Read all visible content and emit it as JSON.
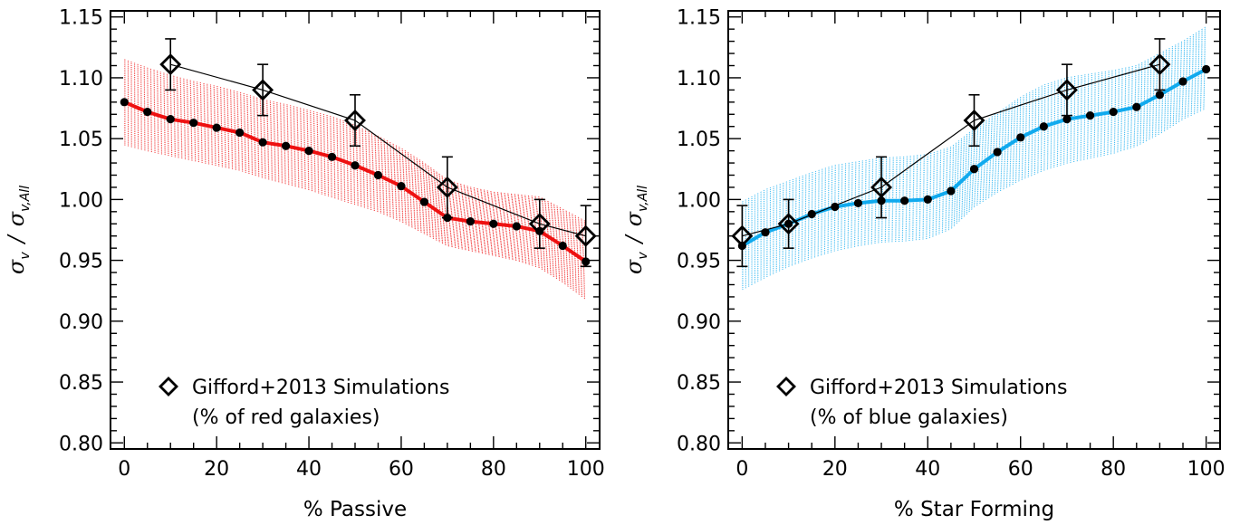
{
  "chart_data": [
    {
      "type": "line",
      "xlabel": "% Passive",
      "ylabel": {
        "symbol": "σ",
        "num_sub": "v",
        "sep": "/",
        "den_sub": "v,All"
      },
      "xlim": [
        -3,
        103
      ],
      "ylim": [
        0.795,
        1.155
      ],
      "xticks": [
        0,
        20,
        40,
        60,
        80,
        100
      ],
      "xtick_labels": [
        "0",
        "20",
        "40",
        "60",
        "80",
        "100"
      ],
      "yticks": [
        0.8,
        0.85,
        0.9,
        0.95,
        1.0,
        1.05,
        1.1,
        1.15
      ],
      "ytick_labels": [
        "0.80",
        "0.85",
        "0.90",
        "0.95",
        "1.00",
        "1.05",
        "1.10",
        "1.15"
      ],
      "grid": false,
      "series": [
        {
          "kind": "line-markers",
          "color": "#ee1111",
          "x": [
            0,
            5,
            10,
            15,
            20,
            25,
            30,
            35,
            40,
            45,
            50,
            55,
            60,
            65,
            70,
            75,
            80,
            85,
            90,
            95,
            100
          ],
          "y": [
            1.08,
            1.072,
            1.066,
            1.063,
            1.059,
            1.055,
            1.047,
            1.044,
            1.04,
            1.035,
            1.028,
            1.02,
            1.011,
            0.998,
            0.985,
            0.982,
            0.98,
            0.978,
            0.974,
            0.962,
            0.949
          ],
          "band_low": [
            1.045,
            1.04,
            1.036,
            1.032,
            1.028,
            1.024,
            1.018,
            1.013,
            1.008,
            1.002,
            0.996,
            0.99,
            0.982,
            0.972,
            0.962,
            0.958,
            0.954,
            0.95,
            0.944,
            0.932,
            0.918
          ],
          "band_high": [
            1.115,
            1.108,
            1.102,
            1.097,
            1.093,
            1.088,
            1.082,
            1.078,
            1.073,
            1.068,
            1.061,
            1.052,
            1.042,
            1.03,
            1.016,
            1.01,
            1.006,
            1.004,
            1.002,
            0.992,
            0.982
          ]
        },
        {
          "name": "Gifford+2013 Simulations",
          "kind": "diamond-errorbar",
          "color": "#000000",
          "x": [
            10,
            30,
            50,
            70,
            90,
            100
          ],
          "y": [
            1.111,
            1.09,
            1.065,
            1.01,
            0.98,
            0.97
          ],
          "yerr": [
            0.021,
            0.021,
            0.021,
            0.025,
            0.02,
            0.025
          ]
        }
      ],
      "legend": {
        "position": "bottom-left",
        "line1": "Gifford+2013 Simulations",
        "line2": "(% of red galaxies)"
      }
    },
    {
      "type": "line",
      "xlabel": "% Star Forming",
      "ylabel": {
        "symbol": "σ",
        "num_sub": "v",
        "sep": "/",
        "den_sub": "v,All"
      },
      "xlim": [
        -3,
        103
      ],
      "ylim": [
        0.795,
        1.155
      ],
      "xticks": [
        0,
        20,
        40,
        60,
        80,
        100
      ],
      "xtick_labels": [
        "0",
        "20",
        "40",
        "60",
        "80",
        "100"
      ],
      "yticks": [
        0.8,
        0.85,
        0.9,
        0.95,
        1.0,
        1.05,
        1.1,
        1.15
      ],
      "ytick_labels": [
        "0.80",
        "0.85",
        "0.90",
        "0.95",
        "1.00",
        "1.05",
        "1.10",
        "1.15"
      ],
      "grid": false,
      "series": [
        {
          "kind": "line-markers",
          "color": "#11aaee",
          "x": [
            0,
            5,
            10,
            15,
            20,
            25,
            30,
            35,
            40,
            45,
            50,
            55,
            60,
            65,
            70,
            75,
            80,
            85,
            90,
            95,
            100
          ],
          "y": [
            0.962,
            0.973,
            0.98,
            0.988,
            0.994,
            0.997,
            0.999,
            0.999,
            1.0,
            1.007,
            1.025,
            1.039,
            1.051,
            1.06,
            1.066,
            1.069,
            1.072,
            1.076,
            1.086,
            1.097,
            1.107
          ],
          "band_low": [
            0.926,
            0.936,
            0.945,
            0.952,
            0.958,
            0.962,
            0.965,
            0.966,
            0.968,
            0.976,
            0.994,
            1.006,
            1.016,
            1.024,
            1.03,
            1.034,
            1.038,
            1.044,
            1.054,
            1.066,
            1.075
          ],
          "band_high": [
            0.998,
            1.008,
            1.015,
            1.022,
            1.028,
            1.031,
            1.034,
            1.035,
            1.037,
            1.043,
            1.058,
            1.071,
            1.084,
            1.094,
            1.1,
            1.103,
            1.106,
            1.11,
            1.12,
            1.13,
            1.142
          ]
        },
        {
          "name": "Gifford+2013 Simulations",
          "kind": "diamond-errorbar",
          "color": "#000000",
          "x": [
            0,
            10,
            30,
            50,
            70,
            90
          ],
          "y": [
            0.97,
            0.98,
            1.01,
            1.065,
            1.09,
            1.111
          ],
          "yerr": [
            0.025,
            0.02,
            0.025,
            0.021,
            0.021,
            0.021
          ]
        }
      ],
      "legend": {
        "position": "bottom-left",
        "line1": "Gifford+2013 Simulations",
        "line2": "(% of blue galaxies)"
      }
    }
  ]
}
